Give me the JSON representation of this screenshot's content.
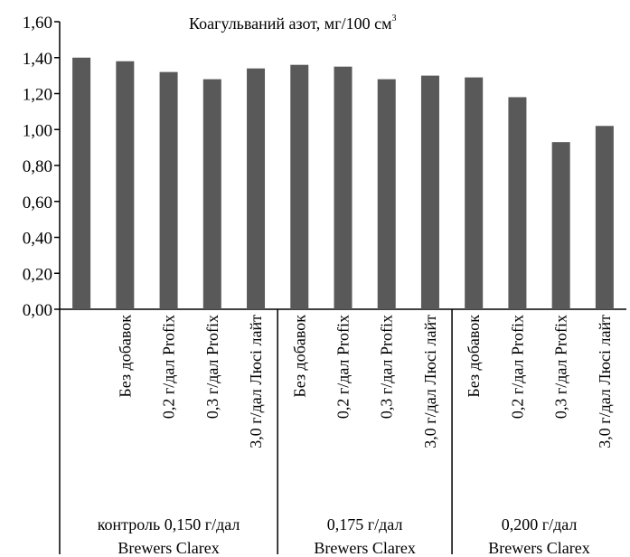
{
  "chart_data": {
    "type": "bar",
    "title": "Коагульваний азот, мг/100 см",
    "title_superscript": "3",
    "xlabel": "",
    "ylabel": "",
    "ylim": [
      0,
      1.6
    ],
    "y_ticks": [
      "0,00",
      "0,20",
      "0,40",
      "0,60",
      "0,80",
      "1,00",
      "1,20",
      "1,40",
      "1,60"
    ],
    "grid": false,
    "bar_color": "#595959",
    "categories": [
      "",
      "Без добавок",
      "0,2 г/дал Profix",
      "0,3 г/дал Profix",
      "3,0 г/дал Люсі лайт",
      "Без добавок",
      "0,2 г/дал Profix",
      "0,3 г/дал Profix",
      "3,0 г/дал Люсі лайт",
      "Без добавок",
      "0,2 г/дал Profix",
      "0,3 г/дал Profix",
      "3,0 г/дал Люсі лайт"
    ],
    "values": [
      1.4,
      1.38,
      1.32,
      1.28,
      1.34,
      1.36,
      1.35,
      1.28,
      1.3,
      1.29,
      1.18,
      0.93,
      1.02
    ],
    "groups": [
      {
        "line1": "контроль 0,150 г/дал",
        "line2": "Brewers Clarex",
        "count": 5
      },
      {
        "line1": "0,175 г/дал",
        "line2": "Brewers Clarex",
        "count": 4
      },
      {
        "line1": "0,200 г/дал",
        "line2": "Brewers Clarex",
        "count": 4
      }
    ]
  }
}
